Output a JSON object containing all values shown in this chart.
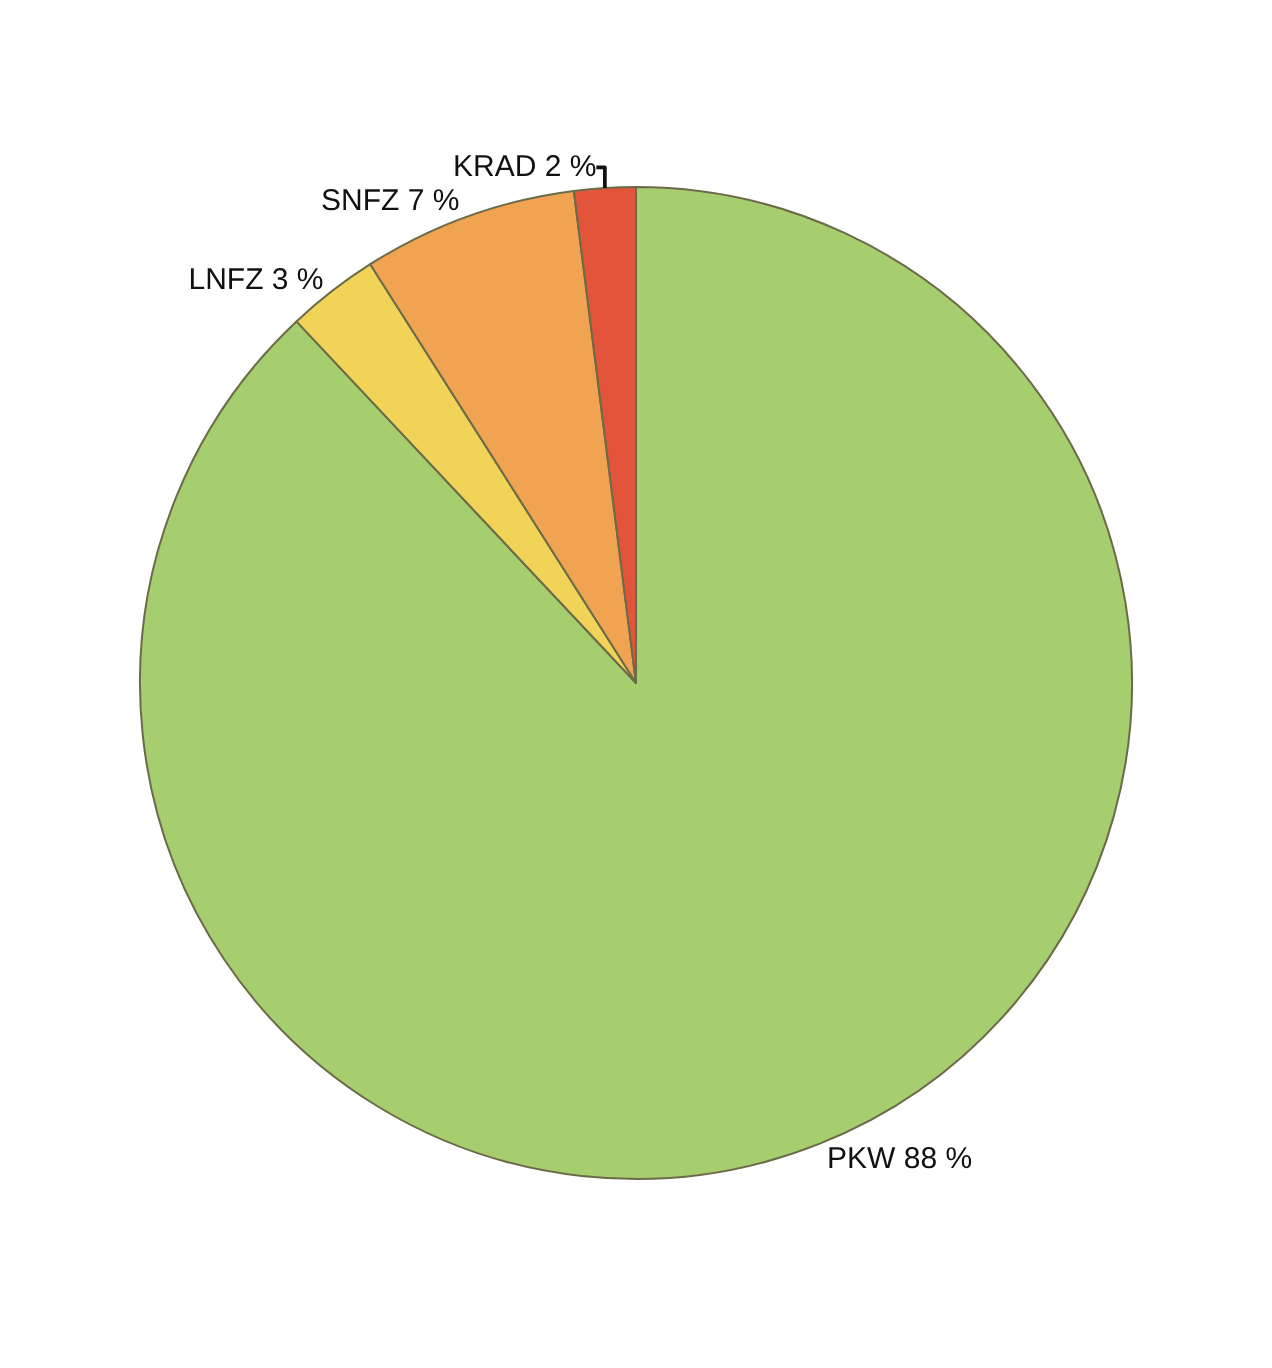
{
  "chart_data": {
    "type": "pie",
    "categories": [
      "PKW",
      "LNFZ",
      "SNFZ",
      "KRAD"
    ],
    "values": [
      88,
      3,
      7,
      2
    ],
    "value_labels": [
      "88 %",
      "3 %",
      "7 %",
      "2 %"
    ],
    "colors": [
      "#a6cd6e",
      "#f1d358",
      "#f0a452",
      "#e3553a"
    ],
    "legend": false
  }
}
